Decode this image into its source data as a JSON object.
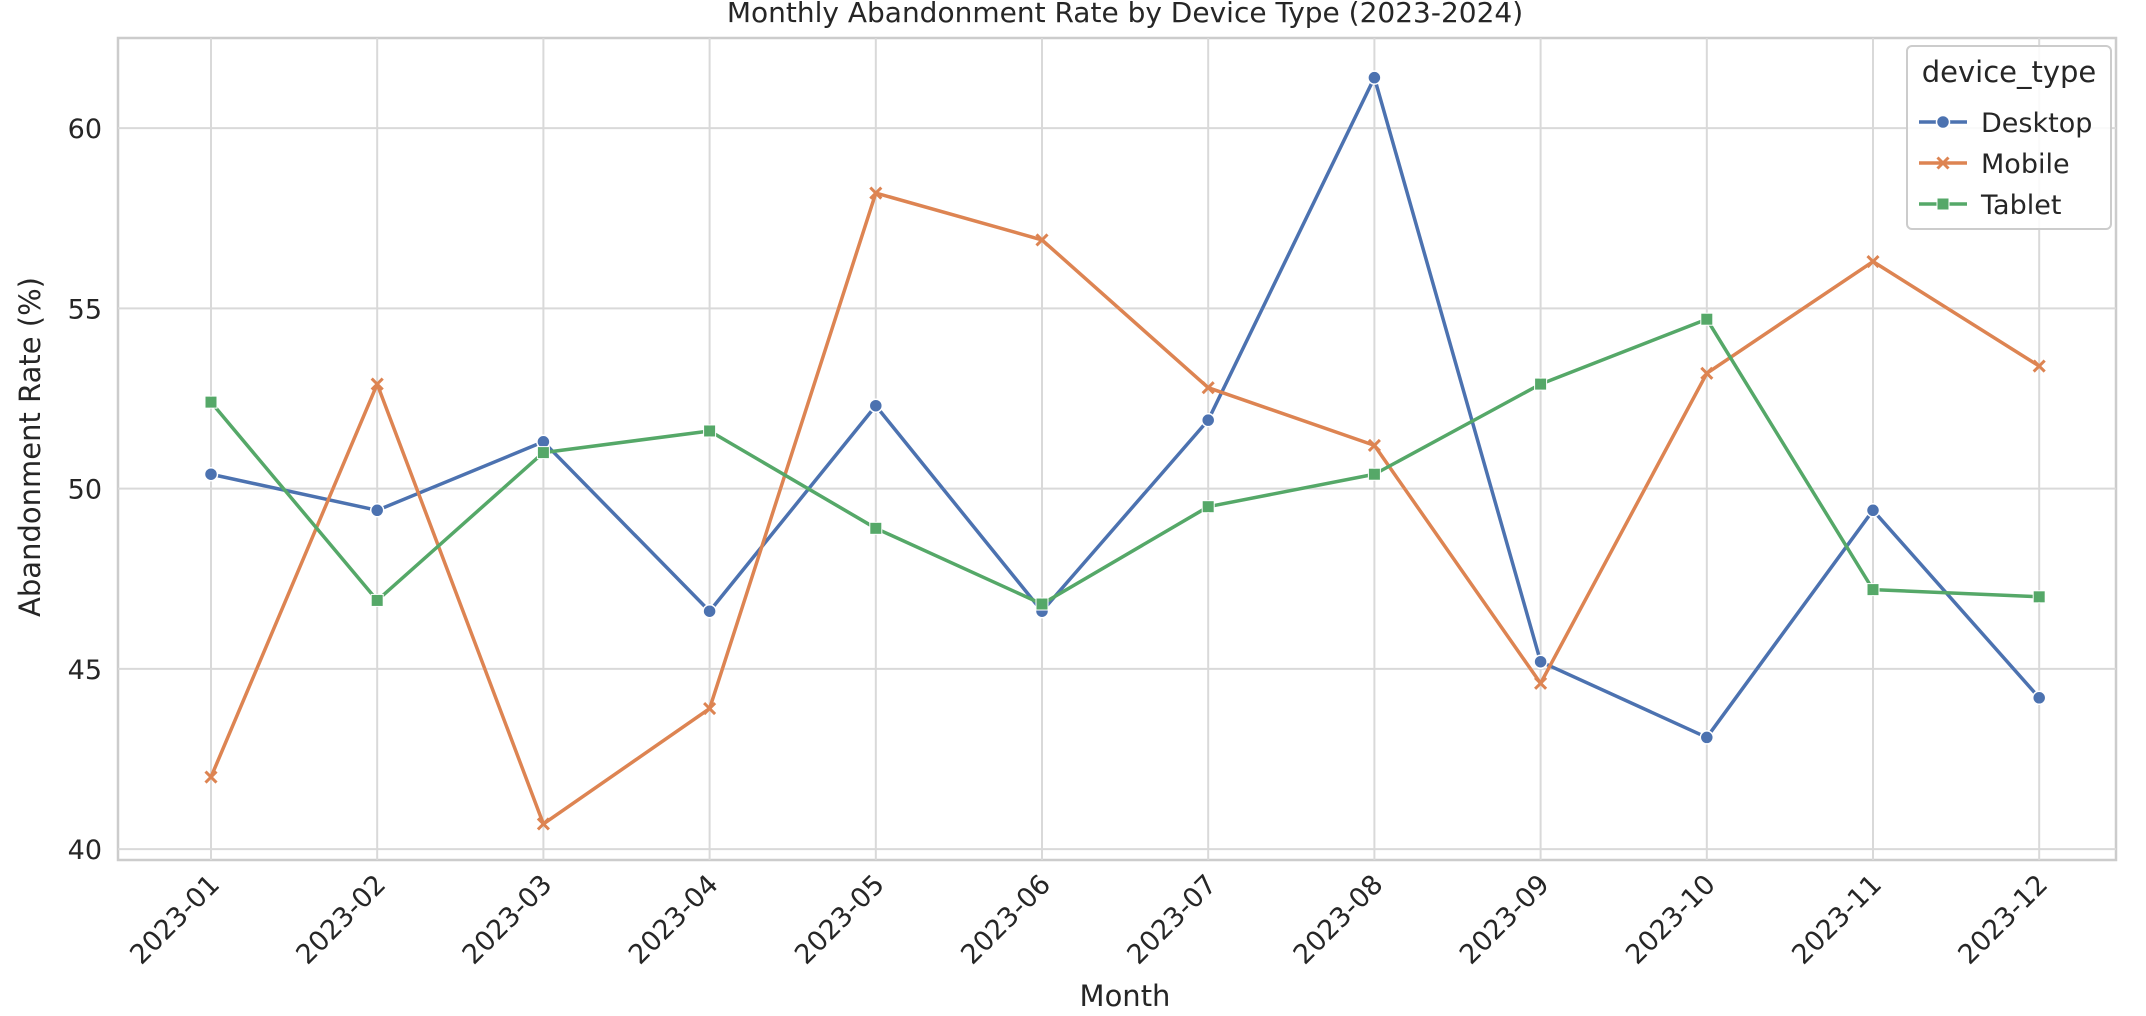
{
  "chart_data": {
    "type": "line",
    "title": "Monthly Abandonment Rate by Device Type (2023-2024)",
    "xlabel": "Month",
    "ylabel": "Abandonment Rate (%)",
    "categories": [
      "2023-01",
      "2023-02",
      "2023-03",
      "2023-04",
      "2023-05",
      "2023-06",
      "2023-07",
      "2023-08",
      "2023-09",
      "2023-10",
      "2023-11",
      "2023-12"
    ],
    "yticks": [
      40,
      45,
      50,
      55,
      60
    ],
    "ylim": [
      39.7,
      62.5
    ],
    "grid": true,
    "legend": {
      "title": "device_type",
      "placement": "top-right"
    },
    "series": [
      {
        "name": "Desktop",
        "color": "#4c72b0",
        "marker": "circle",
        "values": [
          50.4,
          49.4,
          51.3,
          46.6,
          52.3,
          46.6,
          51.9,
          61.4,
          45.2,
          43.1,
          49.4,
          44.2
        ]
      },
      {
        "name": "Mobile",
        "color": "#dd8452",
        "marker": "x",
        "values": [
          42.0,
          52.9,
          40.7,
          43.9,
          58.2,
          56.9,
          52.8,
          51.2,
          44.6,
          53.2,
          56.3,
          53.4
        ]
      },
      {
        "name": "Tablet",
        "color": "#55a868",
        "marker": "square",
        "values": [
          52.4,
          46.9,
          51.0,
          51.6,
          48.9,
          46.8,
          49.5,
          50.4,
          52.9,
          54.7,
          47.2,
          47.0
        ]
      }
    ]
  }
}
